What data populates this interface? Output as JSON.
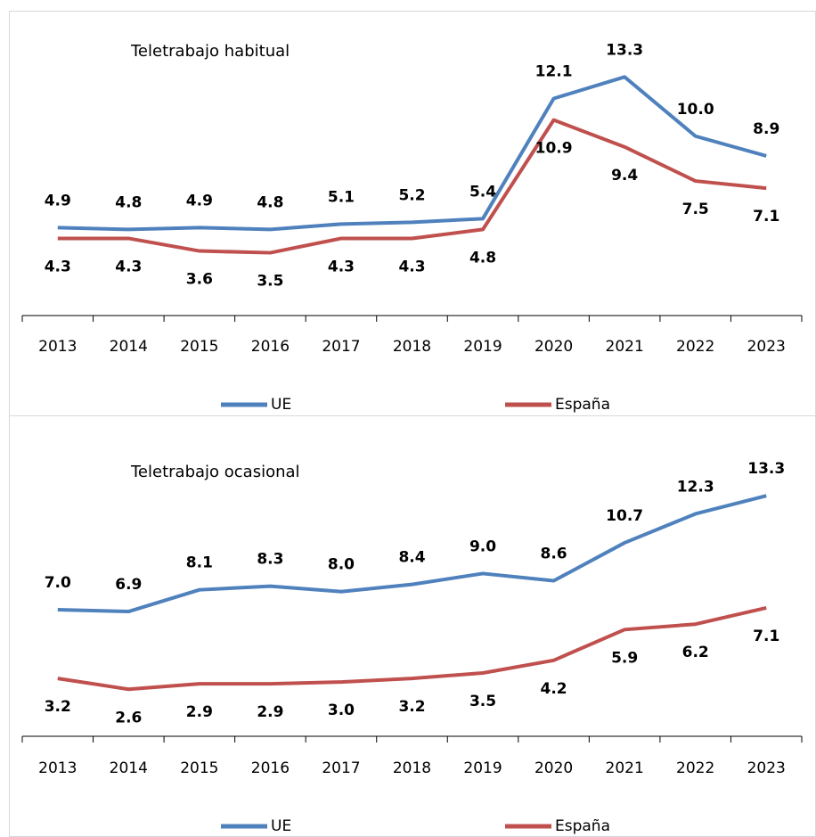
{
  "chart_data": [
    {
      "type": "line",
      "title": "Teletrabajo habitual",
      "categories": [
        "2013",
        "2014",
        "2015",
        "2016",
        "2017",
        "2018",
        "2019",
        "2020",
        "2021",
        "2022",
        "2023"
      ],
      "series": [
        {
          "name": "UE",
          "color": "#4f81bd",
          "values": [
            4.9,
            4.8,
            4.9,
            4.8,
            5.1,
            5.2,
            5.4,
            12.1,
            13.3,
            10.0,
            8.9
          ],
          "value_labels": [
            "4.9",
            "4.8",
            "4.9",
            "4.8",
            "5.1",
            "5.2",
            "5.4",
            "12.1",
            "13.3",
            "10.0",
            "8.9"
          ]
        },
        {
          "name": "España",
          "color": "#c0504d",
          "values": [
            4.3,
            4.3,
            3.6,
            3.5,
            4.3,
            4.3,
            4.8,
            10.9,
            9.4,
            7.5,
            7.1
          ],
          "value_labels": [
            "4.3",
            "4.3",
            "3.6",
            "3.5",
            "4.3",
            "4.3",
            "4.8",
            "10.9",
            "9.4",
            "7.5",
            "7.1"
          ]
        }
      ],
      "ylim": [
        0,
        16
      ],
      "legend": "bottom"
    },
    {
      "type": "line",
      "title": "Teletrabajo ocasional",
      "categories": [
        "2013",
        "2014",
        "2015",
        "2016",
        "2017",
        "2018",
        "2019",
        "2020",
        "2021",
        "2022",
        "2023"
      ],
      "series": [
        {
          "name": "UE",
          "color": "#4f81bd",
          "values": [
            7.0,
            6.9,
            8.1,
            8.3,
            8.0,
            8.4,
            9.0,
            8.6,
            10.7,
            12.3,
            13.3
          ],
          "value_labels": [
            "7.0",
            "6.9",
            "8.1",
            "8.3",
            "8.0",
            "8.4",
            "9.0",
            "8.6",
            "10.7",
            "12.3",
            "13.3"
          ]
        },
        {
          "name": "España",
          "color": "#c0504d",
          "values": [
            3.2,
            2.6,
            2.9,
            2.9,
            3.0,
            3.2,
            3.5,
            4.2,
            5.9,
            6.2,
            7.1
          ],
          "value_labels": [
            "3.2",
            "2.6",
            "2.9",
            "2.9",
            "3.0",
            "3.2",
            "3.5",
            "4.2",
            "5.9",
            "6.2",
            "7.1"
          ]
        }
      ],
      "ylim": [
        0,
        14
      ],
      "legend": "bottom"
    }
  ]
}
